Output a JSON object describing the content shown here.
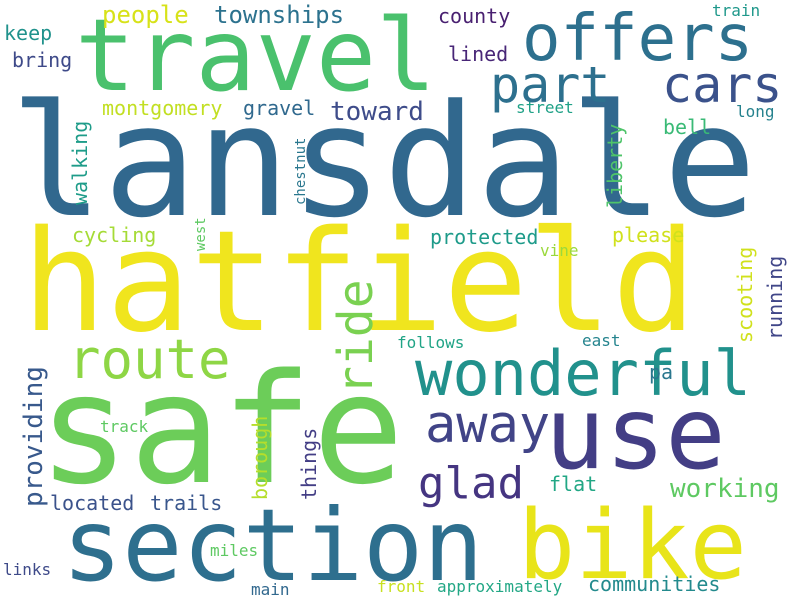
{
  "words": [
    {
      "text": "lansdale",
      "color": "#31688e"
    },
    {
      "text": "hatfield",
      "color": "#f0e51e"
    },
    {
      "text": "safe",
      "color": "#6ccd59"
    },
    {
      "text": "travel",
      "color": "#4ac16d"
    },
    {
      "text": "use",
      "color": "#433e85"
    },
    {
      "text": "section",
      "color": "#2e6f8e"
    },
    {
      "text": "bike",
      "color": "#e8e419"
    },
    {
      "text": "wonderful",
      "color": "#21918c"
    },
    {
      "text": "offers",
      "color": "#2d708e"
    },
    {
      "text": "part",
      "color": "#2d708e"
    },
    {
      "text": "cars",
      "color": "#3b528b"
    },
    {
      "text": "route",
      "color": "#8ed645"
    },
    {
      "text": "away",
      "color": "#414487"
    },
    {
      "text": "ride",
      "color": "#7ad151"
    },
    {
      "text": "glad",
      "color": "#453581"
    },
    {
      "text": "working",
      "color": "#5ec962"
    },
    {
      "text": "providing",
      "color": "#38598c"
    },
    {
      "text": "people",
      "color": "#d7e219"
    },
    {
      "text": "townships",
      "color": "#2c728e"
    },
    {
      "text": "county",
      "color": "#481f70"
    },
    {
      "text": "train",
      "color": "#1f988b"
    },
    {
      "text": "keep",
      "color": "#20928c"
    },
    {
      "text": "bring",
      "color": "#3e4a89"
    },
    {
      "text": "lined",
      "color": "#482677"
    },
    {
      "text": "street",
      "color": "#1fa187"
    },
    {
      "text": "long",
      "color": "#26828e"
    },
    {
      "text": "montgomery",
      "color": "#c2df23"
    },
    {
      "text": "gravel",
      "color": "#30698e"
    },
    {
      "text": "toward",
      "color": "#3e4c8a"
    },
    {
      "text": "bell",
      "color": "#3aba76"
    },
    {
      "text": "chestnut",
      "color": "#2a778e"
    },
    {
      "text": "walking",
      "color": "#1e9c89"
    },
    {
      "text": "liberty",
      "color": "#4fc46a"
    },
    {
      "text": "cycling",
      "color": "#a5db36"
    },
    {
      "text": "west",
      "color": "#5ec962"
    },
    {
      "text": "protected",
      "color": "#1e9b8a"
    },
    {
      "text": "please",
      "color": "#d0e11c"
    },
    {
      "text": "vine",
      "color": "#9bd93c"
    },
    {
      "text": "running",
      "color": "#404688"
    },
    {
      "text": "scooting",
      "color": "#d0e11c"
    },
    {
      "text": "follows",
      "color": "#20a486"
    },
    {
      "text": "east",
      "color": "#25848e"
    },
    {
      "text": "pa",
      "color": "#2a778e"
    },
    {
      "text": "track",
      "color": "#5ec962"
    },
    {
      "text": "borough",
      "color": "#b5de2b"
    },
    {
      "text": "things",
      "color": "#433e85"
    },
    {
      "text": "located",
      "color": "#3b528b"
    },
    {
      "text": "trails",
      "color": "#39568c"
    },
    {
      "text": "flat",
      "color": "#22a785"
    },
    {
      "text": "miles",
      "color": "#5ec962"
    },
    {
      "text": "links",
      "color": "#3e4a89"
    },
    {
      "text": "main",
      "color": "#31688e"
    },
    {
      "text": "front",
      "color": "#c8e020"
    },
    {
      "text": "approximately",
      "color": "#22a785"
    },
    {
      "text": "communities",
      "color": "#238a8d"
    }
  ]
}
